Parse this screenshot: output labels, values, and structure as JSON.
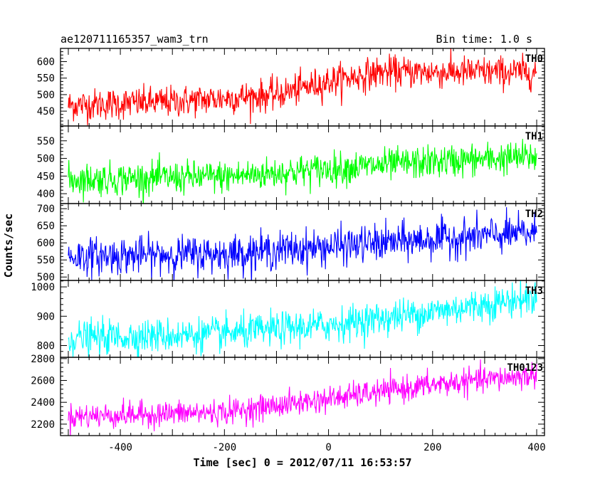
{
  "header": {
    "title": "ae120711165357_wam3_trn",
    "bin_time": "Bin time: 1.0 s"
  },
  "chart_data": {
    "type": "line",
    "title": "ae120711165357_wam3_trn",
    "subtitle": "Bin time: 1.0 s",
    "xlabel": "Time [sec] 0 = 2012/07/11 16:53:57",
    "ylabel": "Counts/sec",
    "xlim": [
      -515,
      415
    ],
    "x_ticks": [
      -400,
      -200,
      0,
      200,
      400
    ],
    "x_range": [
      -500,
      400
    ],
    "x_step": 1,
    "series": [
      {
        "name": "TH0",
        "color": "#ff0000",
        "ylim": [
          405,
          640
        ],
        "y_ticks": [
          450,
          500,
          550,
          600
        ],
        "trend": [
          [
            -500,
            468
          ],
          [
            -300,
            478
          ],
          [
            -100,
            500
          ],
          [
            0,
            540
          ],
          [
            100,
            568
          ],
          [
            400,
            568
          ]
        ],
        "noise_sd": 24
      },
      {
        "name": "TH1",
        "color": "#00ff00",
        "ylim": [
          372,
          592
        ],
        "y_ticks": [
          400,
          450,
          500,
          550
        ],
        "trend": [
          [
            -500,
            440
          ],
          [
            -200,
            448
          ],
          [
            0,
            470
          ],
          [
            200,
            490
          ],
          [
            400,
            505
          ]
        ],
        "noise_sd": 23
      },
      {
        "name": "TH2",
        "color": "#0000ff",
        "ylim": [
          490,
          715
        ],
        "y_ticks": [
          500,
          550,
          600,
          650,
          700
        ],
        "trend": [
          [
            -500,
            560
          ],
          [
            -200,
            568
          ],
          [
            0,
            588
          ],
          [
            200,
            610
          ],
          [
            400,
            630
          ]
        ],
        "noise_sd": 27
      },
      {
        "name": "TH3",
        "color": "#00ffff",
        "ylim": [
          760,
          1022
        ],
        "y_ticks": [
          800,
          900,
          1000
        ],
        "trend": [
          [
            -500,
            825
          ],
          [
            -200,
            840
          ],
          [
            0,
            870
          ],
          [
            200,
            915
          ],
          [
            400,
            965
          ]
        ],
        "noise_sd": 29
      },
      {
        "name": "TH0123",
        "color": "#ff00ff",
        "ylim": [
          2095,
          2812
        ],
        "y_ticks": [
          2200,
          2400,
          2600,
          2800
        ],
        "trend": [
          [
            -500,
            2270
          ],
          [
            -200,
            2310
          ],
          [
            0,
            2430
          ],
          [
            200,
            2560
          ],
          [
            400,
            2650
          ]
        ],
        "noise_sd": 58
      }
    ]
  }
}
